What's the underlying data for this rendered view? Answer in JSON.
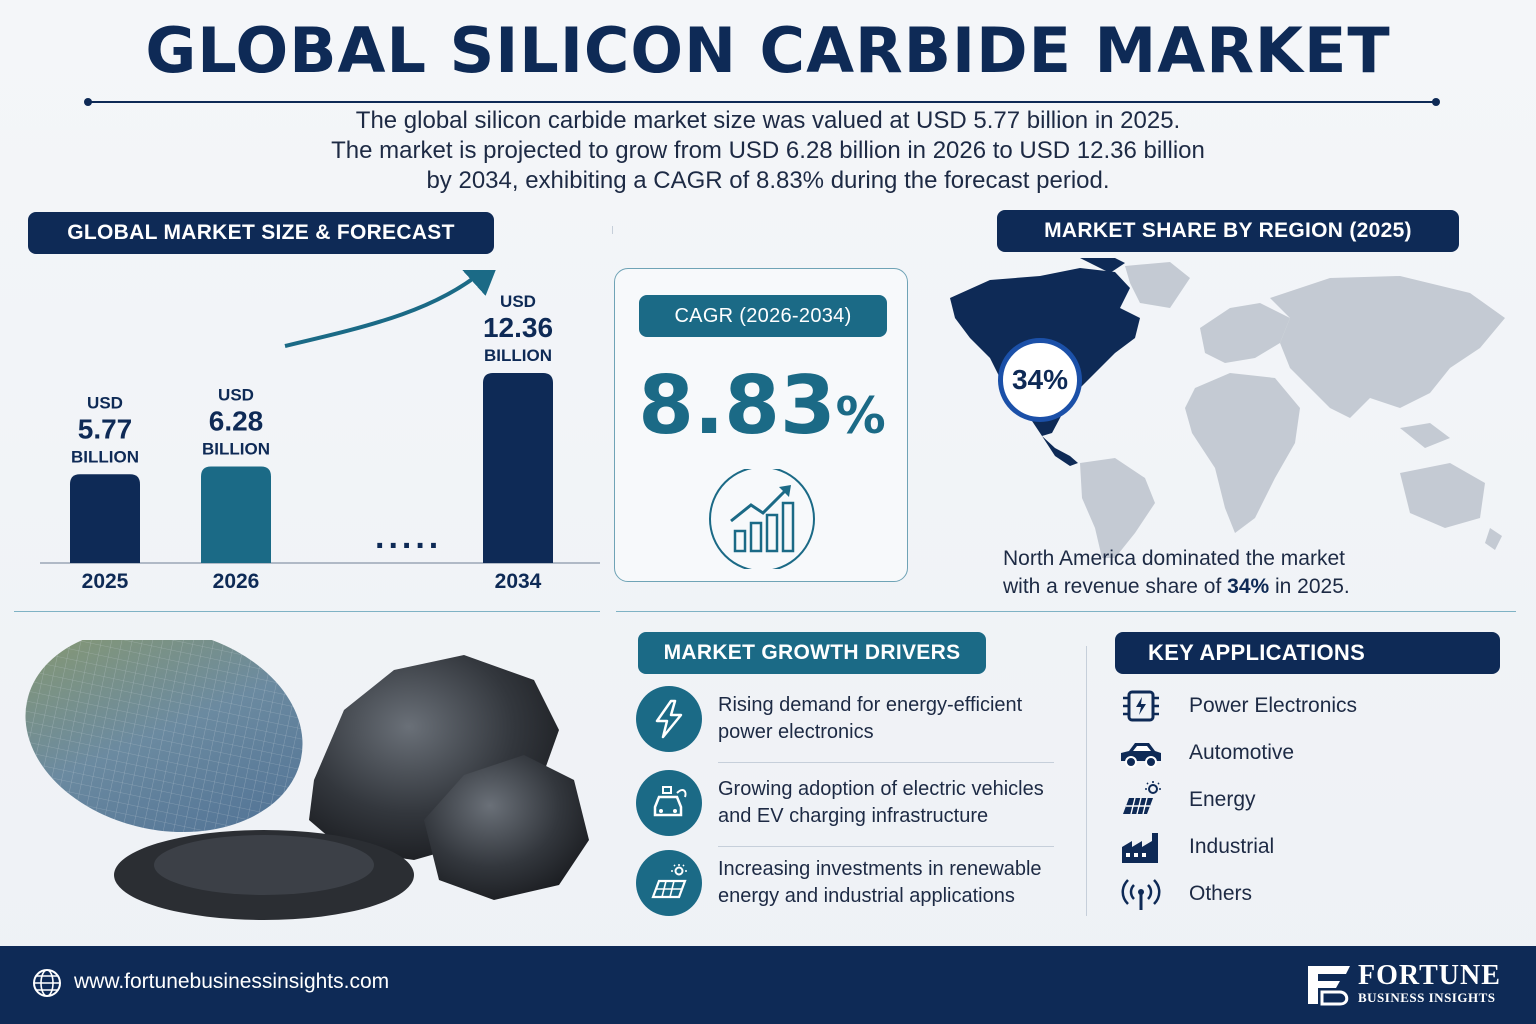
{
  "title": "GLOBAL SILICON CARBIDE MARKET",
  "intro": {
    "line1": "The global silicon carbide market size was valued at USD 5.77 billion in 2025.",
    "line2": "The market is projected to grow from USD 6.28 billion in 2026 to USD 12.36 billion",
    "line3": "by 2034, exhibiting a CAGR of 8.83% during the forecast period."
  },
  "forecast": {
    "header": "GLOBAL MARKET SIZE & FORECAST",
    "currency": "USD",
    "unit": "BILLION",
    "ellipsis": ".....",
    "colors": {
      "navy": "#0e2a56",
      "teal": "#1b6a86"
    }
  },
  "chart_data": {
    "type": "bar",
    "categories": [
      "2025",
      "2026",
      "2034"
    ],
    "values": [
      5.77,
      6.28,
      12.36
    ],
    "value_labels": [
      "5.77",
      "6.28",
      "12.36"
    ],
    "title": "",
    "xlabel": "",
    "ylabel": ""
  },
  "cagr": {
    "label": "CAGR (2026-2034)",
    "value": "8.83",
    "suffix": "%",
    "icon": "growth-chart-icon"
  },
  "region": {
    "header": "MARKET SHARE BY REGION (2025)",
    "share": "34%",
    "text_line1": "North America dominated the market",
    "text_line2_pre": "with a revenue share of ",
    "text_line2_bold": "34%",
    "text_line2_post": " in 2025."
  },
  "drivers": {
    "header": "MARKET GROWTH DRIVERS",
    "items": [
      {
        "icon": "lightning-icon",
        "line1": "Rising demand for energy-efficient",
        "line2": "power electronics"
      },
      {
        "icon": "ev-charging-icon",
        "line1": "Growing adoption of electric vehicles",
        "line2": "and EV charging infrastructure"
      },
      {
        "icon": "solar-panel-icon",
        "line1": "Increasing investments in renewable",
        "line2": "energy and industrial applications"
      }
    ]
  },
  "applications": {
    "header": "KEY APPLICATIONS",
    "items": [
      {
        "icon": "chip-icon",
        "label": "Power Electronics"
      },
      {
        "icon": "car-icon",
        "label": "Automotive"
      },
      {
        "icon": "solar-icon",
        "label": "Energy"
      },
      {
        "icon": "factory-icon",
        "label": "Industrial"
      },
      {
        "icon": "signal-icon",
        "label": "Others"
      }
    ]
  },
  "footer": {
    "website": "www.fortunebusinessinsights.com",
    "brand_name": "FORTUNE",
    "brand_sub": "BUSINESS INSIGHTS"
  }
}
